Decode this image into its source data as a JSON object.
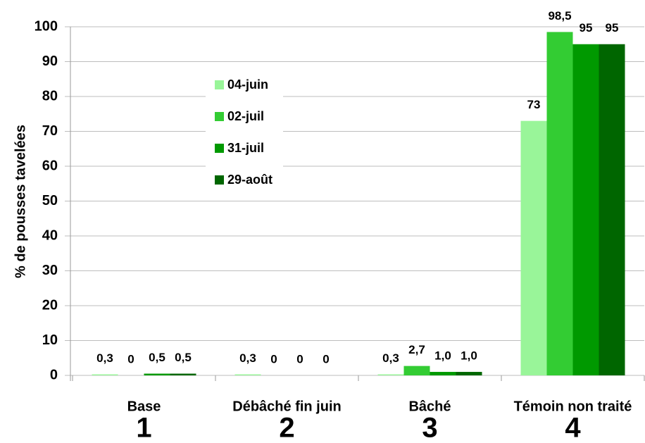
{
  "chart_data": {
    "type": "bar",
    "y_label": "% de pousses tavelées",
    "categories": [
      "Base",
      "Débâché fin juin",
      "Bâché",
      "Témoin non traité"
    ],
    "category_numbers": [
      "1",
      "2",
      "3",
      "4"
    ],
    "series": [
      {
        "name": "04-juin",
        "color": "#99f599",
        "values": [
          0.3,
          0.3,
          0.3,
          73
        ],
        "value_labels": [
          "0,3",
          "0,3",
          "0,3",
          "73"
        ]
      },
      {
        "name": "02-juil",
        "color": "#33cc33",
        "values": [
          0,
          0,
          2.7,
          98.5
        ],
        "value_labels": [
          "0",
          "0",
          "2,7",
          "98,5"
        ]
      },
      {
        "name": "31-juil",
        "color": "#009900",
        "values": [
          0.5,
          0,
          1.0,
          95
        ],
        "value_labels": [
          "0,5",
          "0",
          "1,0",
          "95"
        ]
      },
      {
        "name": "29-août",
        "color": "#006600",
        "values": [
          0.5,
          0,
          1.0,
          95
        ],
        "value_labels": [
          "0,5",
          "0",
          "1,0",
          "95"
        ]
      }
    ],
    "ylim": [
      0,
      100
    ],
    "yticks": [
      0,
      10,
      20,
      30,
      40,
      50,
      60,
      70,
      80,
      90,
      100
    ],
    "grid": true
  }
}
